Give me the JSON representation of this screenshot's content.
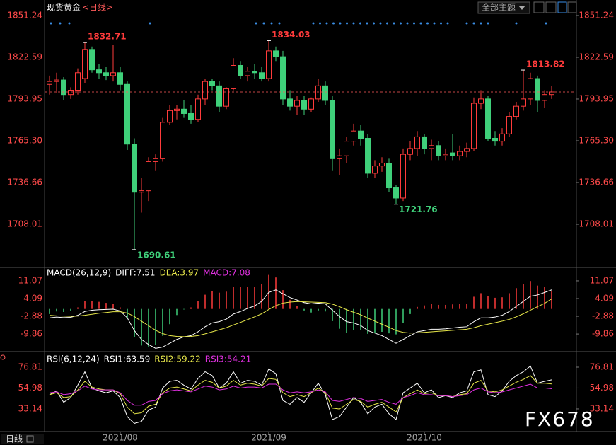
{
  "header": {
    "title": "现货黄金",
    "period": "<日线>",
    "theme_button": "全部主题",
    "period_tab": "日线",
    "watermark": "FX678"
  },
  "chart_data": [
    {
      "type": "candlestick",
      "up_color": "#ff3b3b",
      "down_color": "#3fd07a",
      "ylim": [
        1678.4,
        1861.9
      ],
      "yticks": [
        1851.24,
        1822.59,
        1793.95,
        {
          "value": 1765.3,
          "label": "1765.30"
        },
        1736.66,
        1708.01
      ],
      "xticks": [
        {
          "value": 10,
          "label": "2021/08"
        },
        {
          "value": 31,
          "label": "2021/09"
        },
        {
          "value": 53,
          "label": "2021/10"
        }
      ],
      "candles": [
        [
          1804,
          1810,
          1797,
          1806
        ],
        [
          1806,
          1812,
          1798,
          1807
        ],
        [
          1807,
          1809,
          1793,
          1797
        ],
        [
          1797,
          1802,
          1794,
          1800
        ],
        [
          1800,
          1815,
          1797,
          1812
        ],
        [
          1808,
          1832.71,
          1805,
          1828
        ],
        [
          1828,
          1830,
          1812,
          1814
        ],
        [
          1814,
          1818,
          1808,
          1812
        ],
        [
          1812,
          1816,
          1807,
          1810
        ],
        [
          1810,
          1831,
          1806,
          1812
        ],
        [
          1812,
          1816,
          1800,
          1804
        ],
        [
          1804,
          1806,
          1759,
          1763
        ],
        [
          1763,
          1767,
          1690.61,
          1730
        ],
        [
          1730,
          1740,
          1716,
          1731
        ],
        [
          1731,
          1754,
          1724,
          1751
        ],
        [
          1751,
          1756,
          1745,
          1753
        ],
        [
          1753,
          1781,
          1751,
          1778
        ],
        [
          1778,
          1790,
          1776,
          1786
        ],
        [
          1786,
          1790,
          1780,
          1787
        ],
        [
          1787,
          1793,
          1781,
          1784
        ],
        [
          1784,
          1790,
          1777,
          1780
        ],
        [
          1780,
          1797,
          1778,
          1794
        ],
        [
          1794,
          1808,
          1790,
          1806
        ],
        [
          1806,
          1808,
          1800,
          1803
        ],
        [
          1803,
          1806,
          1785,
          1789
        ],
        [
          1789,
          1802,
          1787,
          1801
        ],
        [
          1801,
          1822,
          1800,
          1817
        ],
        [
          1817,
          1820,
          1808,
          1810
        ],
        [
          1810,
          1816,
          1806,
          1813
        ],
        [
          1813,
          1818,
          1808,
          1812
        ],
        [
          1812,
          1816,
          1806,
          1808
        ],
        [
          1808,
          1834.03,
          1806,
          1827
        ],
        [
          1827,
          1830,
          1820,
          1823
        ],
        [
          1823,
          1827,
          1790,
          1794
        ],
        [
          1794,
          1800,
          1786,
          1789
        ],
        [
          1789,
          1796,
          1783,
          1793
        ],
        [
          1793,
          1796,
          1783,
          1787
        ],
        [
          1787,
          1795,
          1785,
          1794
        ],
        [
          1794,
          1808,
          1792,
          1803
        ],
        [
          1803,
          1806,
          1790,
          1793
        ],
        [
          1793,
          1796,
          1745,
          1753
        ],
        [
          1753,
          1760,
          1742,
          1755
        ],
        [
          1755,
          1768,
          1750,
          1765
        ],
        [
          1765,
          1777,
          1762,
          1772
        ],
        [
          1772,
          1776,
          1762,
          1767
        ],
        [
          1767,
          1770,
          1740,
          1743
        ],
        [
          1743,
          1752,
          1740,
          1748
        ],
        [
          1748,
          1754,
          1744,
          1750
        ],
        [
          1750,
          1753,
          1730,
          1733
        ],
        [
          1733,
          1735,
          1721.76,
          1726
        ],
        [
          1726,
          1760,
          1724,
          1756
        ],
        [
          1756,
          1765,
          1752,
          1760
        ],
        [
          1760,
          1772,
          1755,
          1768
        ],
        [
          1768,
          1770,
          1756,
          1760
        ],
        [
          1760,
          1766,
          1752,
          1762
        ],
        [
          1762,
          1765,
          1752,
          1755
        ],
        [
          1755,
          1760,
          1752,
          1756
        ],
        [
          1757,
          1770,
          1752,
          1755
        ],
        [
          1755,
          1762,
          1752,
          1758
        ],
        [
          1758,
          1764,
          1754,
          1760
        ],
        [
          1760,
          1795,
          1758,
          1791
        ],
        [
          1791,
          1800,
          1787,
          1794
        ],
        [
          1794,
          1796,
          1765,
          1767
        ],
        [
          1767,
          1772,
          1762,
          1765
        ],
        [
          1765,
          1774,
          1762,
          1770
        ],
        [
          1770,
          1785,
          1768,
          1782
        ],
        [
          1782,
          1792,
          1780,
          1789
        ],
        [
          1789,
          1813.82,
          1786,
          1794
        ],
        [
          1794,
          1812,
          1790,
          1808
        ],
        [
          1808,
          1810,
          1785,
          1793
        ],
        [
          1793,
          1800,
          1788,
          1797
        ],
        [
          1797,
          1803,
          1794,
          1798.8
        ]
      ],
      "annotations": [
        {
          "index": 5,
          "label": "1832.71",
          "color": "#ff3b3b",
          "at": "high"
        },
        {
          "index": 31,
          "label": "1834.03",
          "color": "#ff3b3b",
          "at": "high"
        },
        {
          "index": 67,
          "label": "1813.82",
          "color": "#ff3b3b",
          "at": "high"
        },
        {
          "index": 12,
          "label": "1690.61",
          "color": "#3fd07a",
          "at": "low"
        },
        {
          "index": 49,
          "label": "1721.76",
          "color": "#3fd07a",
          "at": "low"
        }
      ]
    },
    {
      "type": "macd",
      "title": "MACD(26,12,9)",
      "ylim": [
        -16.8,
        14.4
      ],
      "yticks": [
        11.07,
        4.09,
        -2.88,
        -9.86
      ],
      "series": [
        {
          "label": "DIFF:7.51",
          "color": "#ffffff",
          "style": "line",
          "values": [
            -3.5,
            -3.2,
            -3.4,
            -3.3,
            -2.5,
            -1,
            -0.5,
            -0.3,
            -0.2,
            -0.1,
            -0.8,
            -3.5,
            -8.5,
            -12,
            -14,
            -15.5,
            -15,
            -13.5,
            -12,
            -11,
            -10.5,
            -9,
            -7,
            -5.5,
            -5,
            -4,
            -2,
            -1,
            0.2,
            1.2,
            3,
            6.5,
            7.5,
            6,
            4.5,
            3.5,
            2.5,
            2,
            2.3,
            2,
            -0.5,
            -3,
            -5,
            -5.5,
            -6.5,
            -8.5,
            -9.5,
            -10.5,
            -12,
            -13.5,
            -12,
            -10.5,
            -9,
            -8.5,
            -8,
            -8,
            -7.8,
            -7.5,
            -7.2,
            -7,
            -5,
            -3.5,
            -3.5,
            -3.2,
            -2.5,
            -1,
            1,
            3,
            5,
            5.5,
            6.5,
            7.51
          ]
        },
        {
          "label": "DEA:3.97",
          "color": "#e8e84a",
          "style": "line",
          "values": [
            -2.5,
            -2.7,
            -2.8,
            -2.9,
            -2.8,
            -2.5,
            -2.1,
            -1.7,
            -1.4,
            -1.1,
            -1.1,
            -1.6,
            -3,
            -4.8,
            -6.6,
            -8.4,
            -9.7,
            -10.5,
            -10.8,
            -10.9,
            -10.8,
            -10.5,
            -9.8,
            -9,
            -8.2,
            -7.4,
            -6.3,
            -5.3,
            -4.2,
            -3.1,
            -1.9,
            -0.2,
            1.3,
            2.3,
            2.7,
            2.9,
            2.8,
            2.7,
            2.6,
            2.5,
            1.9,
            0.9,
            -0.3,
            -1.3,
            -2.3,
            -3.6,
            -4.8,
            -6,
            -7.2,
            -8.5,
            -9.2,
            -9.5,
            -9.4,
            -9.2,
            -9,
            -8.8,
            -8.6,
            -8.4,
            -8.2,
            -8,
            -7.4,
            -6.6,
            -6,
            -5.4,
            -4.8,
            -4.1,
            -3.1,
            -1.9,
            -0.5,
            0.9,
            2.2,
            3.97
          ]
        },
        {
          "label": "MACD:7.08",
          "color": "#e030e0",
          "style": "bar",
          "up_color": "#ff3b3b",
          "down_color": "#3fd07a",
          "values": [
            -2,
            -1,
            -1.2,
            -0.8,
            0.6,
            3,
            3.2,
            2.8,
            2.4,
            2,
            0.6,
            -3.8,
            -11,
            -14.4,
            -14.8,
            -14.2,
            -10.6,
            -6,
            -2.4,
            -0.2,
            0.6,
            3,
            5.6,
            7,
            6.4,
            6.8,
            8.6,
            8.6,
            8.8,
            8.6,
            9.8,
            13.4,
            12.4,
            7.4,
            3.6,
            1.2,
            -0.6,
            -1.4,
            -0.6,
            -1,
            -4.8,
            -7.8,
            -9.4,
            -8.4,
            -8.4,
            -9.8,
            -9.4,
            -9,
            -9.6,
            -10,
            -5.6,
            -2,
            0.8,
            1.4,
            2,
            1.6,
            1.6,
            1.8,
            2,
            2,
            4.8,
            6.2,
            5,
            4.4,
            4.6,
            6.2,
            8.2,
            9.8,
            11,
            9.2,
            8.6,
            7.08
          ]
        }
      ]
    },
    {
      "type": "line",
      "title": "RSI(6,12,24)",
      "ylim": [
        9.4,
        89.4
      ],
      "yticks": [
        76.81,
        54.98,
        33.14
      ],
      "series": [
        {
          "label": "RSI1:63.59",
          "color": "#ffffff",
          "values": [
            48,
            52,
            40,
            45,
            58,
            72,
            55,
            52,
            50,
            52,
            45,
            25,
            18,
            20,
            32,
            35,
            55,
            62,
            63,
            58,
            54,
            65,
            72,
            68,
            55,
            60,
            72,
            60,
            63,
            62,
            58,
            75,
            70,
            42,
            38,
            45,
            40,
            50,
            60,
            48,
            22,
            25,
            35,
            45,
            40,
            28,
            35,
            38,
            28,
            22,
            50,
            55,
            60,
            50,
            53,
            45,
            47,
            45,
            50,
            52,
            72,
            74,
            48,
            46,
            52,
            62,
            68,
            72,
            78,
            60,
            62,
            63.59
          ]
        },
        {
          "label": "RSI2:59.22",
          "color": "#e8e84a",
          "values": [
            48,
            50,
            45,
            46,
            53,
            62,
            56,
            54,
            53,
            53,
            49,
            35,
            28,
            29,
            36,
            38,
            50,
            55,
            56,
            54,
            52,
            58,
            63,
            61,
            55,
            57,
            63,
            58,
            60,
            59,
            57,
            65,
            64,
            50,
            46,
            48,
            46,
            50,
            55,
            50,
            34,
            33,
            38,
            43,
            41,
            35,
            38,
            40,
            35,
            30,
            45,
            49,
            53,
            49,
            50,
            47,
            47,
            46,
            48,
            49,
            60,
            63,
            52,
            51,
            53,
            57,
            61,
            64,
            68,
            60,
            60,
            59.22
          ]
        },
        {
          "label": "RSI3:54.21",
          "color": "#e030e0",
          "values": [
            50,
            51,
            48,
            49,
            52,
            57,
            54,
            53,
            53,
            53,
            50,
            42,
            37,
            37,
            41,
            42,
            49,
            52,
            53,
            52,
            51,
            54,
            57,
            56,
            53,
            54,
            57,
            55,
            56,
            56,
            55,
            59,
            59,
            53,
            50,
            51,
            50,
            51,
            53,
            51,
            42,
            41,
            43,
            45,
            44,
            41,
            42,
            43,
            40,
            38,
            45,
            47,
            50,
            48,
            48,
            47,
            47,
            46,
            47,
            48,
            53,
            55,
            51,
            50,
            51,
            53,
            55,
            57,
            59,
            55,
            55,
            54.21
          ]
        }
      ]
    }
  ]
}
